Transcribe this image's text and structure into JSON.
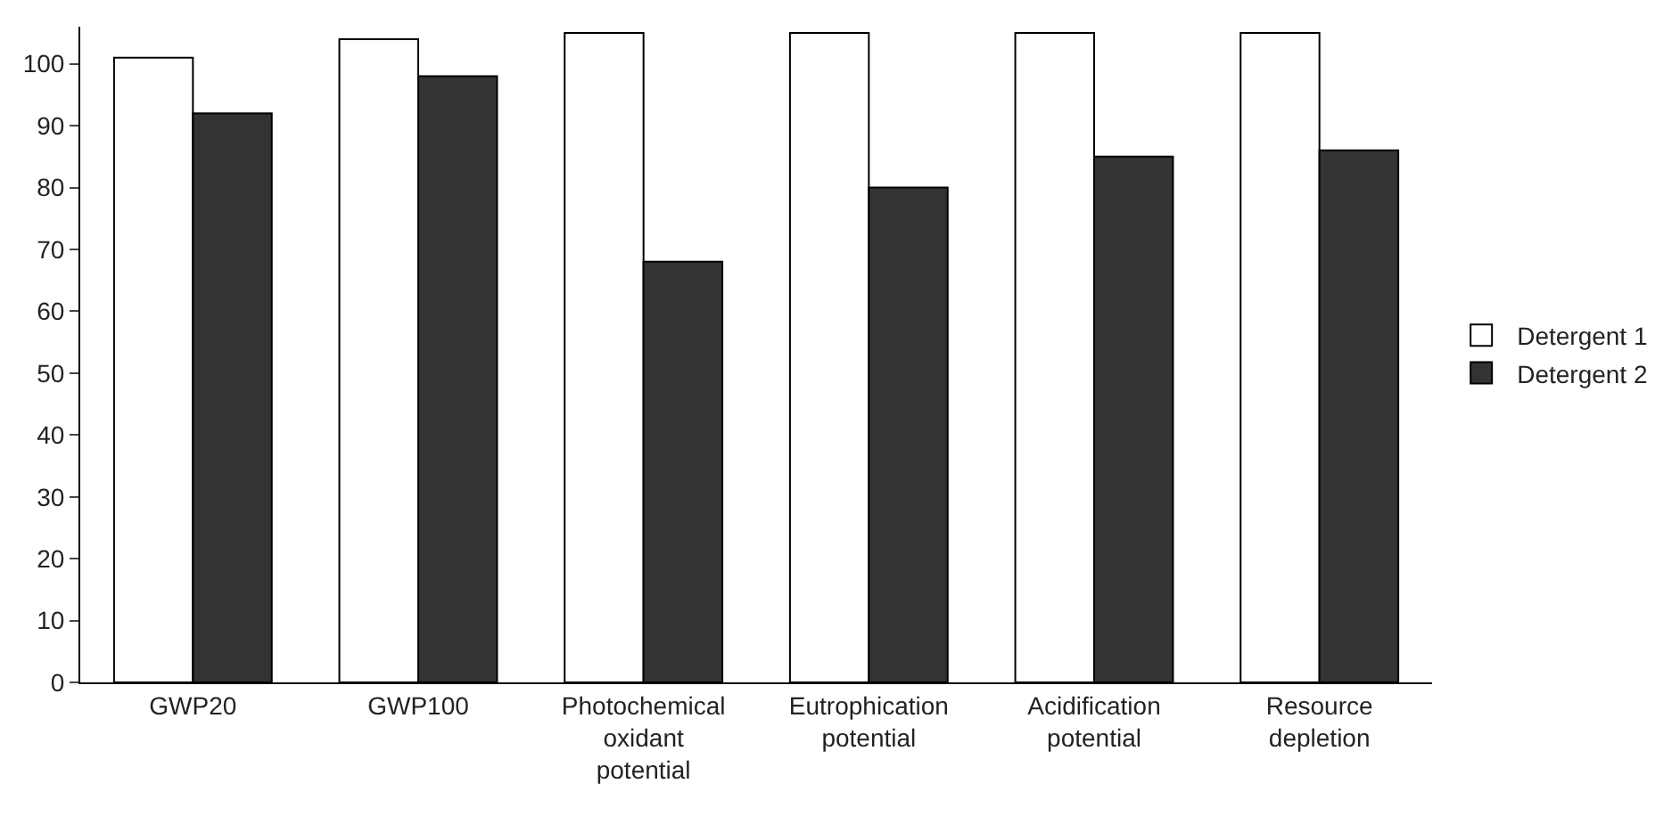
{
  "chart_data": {
    "type": "bar",
    "categories": [
      "GWP20",
      "GWP100",
      "Photochemical oxidant potential",
      "Eutrophication potential",
      "Acidification potential",
      "Resource depletion"
    ],
    "series": [
      {
        "name": "Detergent 1",
        "color": "#ffffff",
        "values": [
          101,
          104,
          105,
          105,
          105,
          105
        ]
      },
      {
        "name": "Detergent 2",
        "color": "#333333",
        "values": [
          92,
          98,
          68,
          80,
          85,
          86
        ]
      }
    ],
    "ylim": [
      0,
      106
    ],
    "yticks": [
      0,
      10,
      20,
      30,
      40,
      50,
      60,
      70,
      80,
      90,
      100
    ],
    "legend": "right"
  }
}
